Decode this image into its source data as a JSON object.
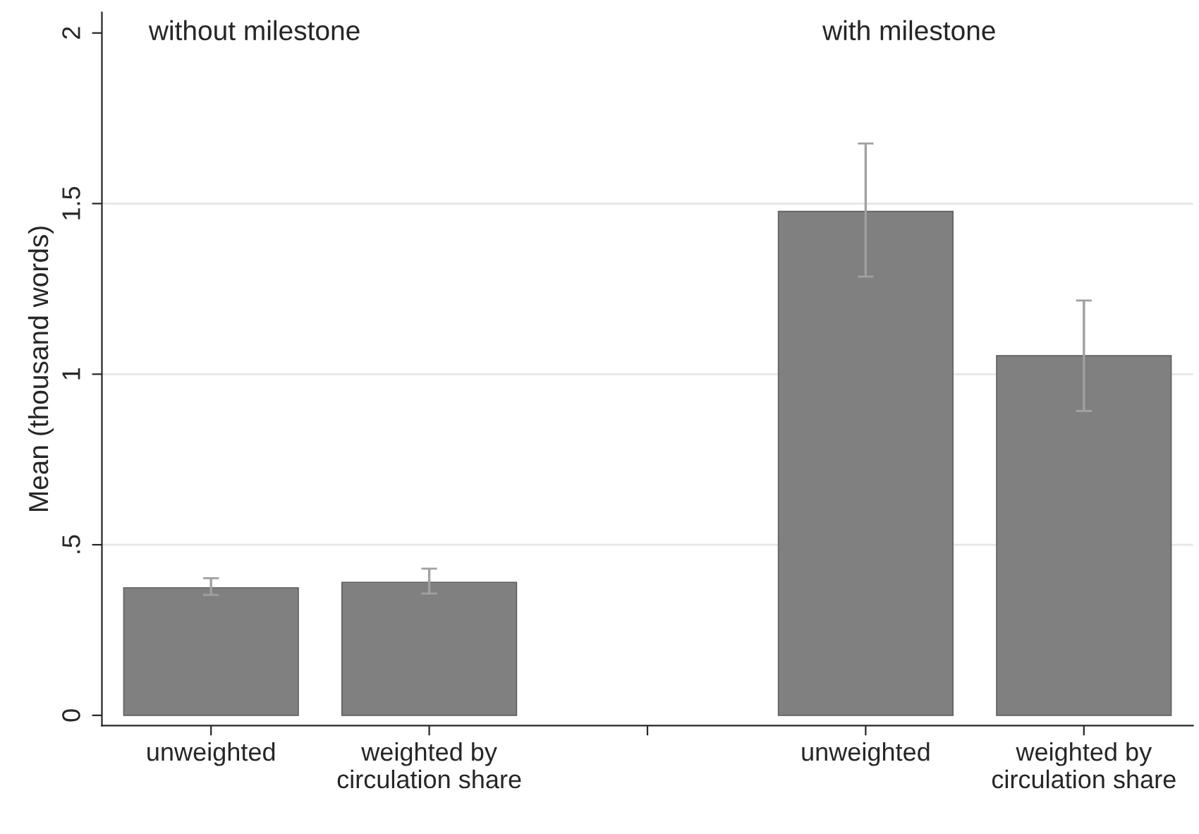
{
  "chart_data": {
    "type": "bar",
    "ylabel": "Mean (thousand words)",
    "categories": [
      "unweighted",
      "weighted by\ncirculation share",
      null,
      "unweighted",
      "weighted by\ncirculation share"
    ],
    "values": [
      0.374,
      0.39,
      null,
      1.477,
      1.054
    ],
    "errors": [
      [
        0.353,
        0.402
      ],
      [
        0.357,
        0.43
      ],
      null,
      [
        1.286,
        1.676
      ],
      [
        0.892,
        1.216
      ]
    ],
    "color": "#808080",
    "ylim": [
      -0.03,
      2.06
    ],
    "yticks": [
      0,
      {
        "value": 0.5,
        "label": ".5"
      },
      1,
      1.5,
      2
    ],
    "grid": "y",
    "annotations": [
      "without milestone",
      "with milestone"
    ]
  }
}
